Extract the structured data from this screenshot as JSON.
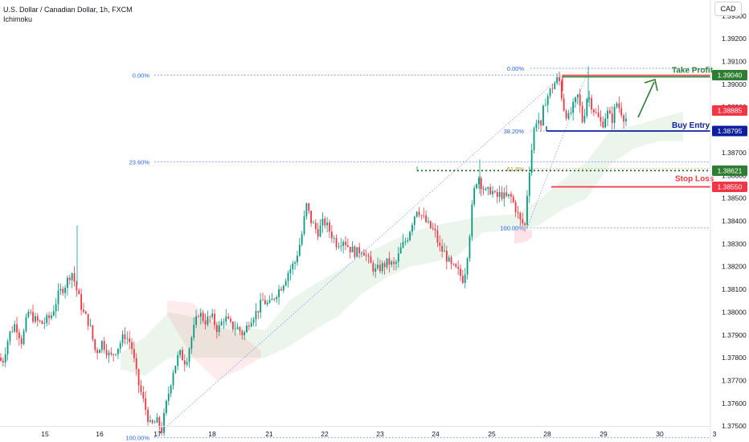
{
  "header": {
    "symbol_title": "U.S. Dollar / Canadian Dollar, 1h, FXCM",
    "indicator": "Ichimoku"
  },
  "currency_button": "CAD",
  "chart_data": {
    "type": "candlestick",
    "x_tick_labels": [
      "15",
      "16",
      "17",
      "18",
      "21",
      "22",
      "23",
      "24",
      "25",
      "28",
      "29",
      "30",
      "3"
    ],
    "y_ticks": [
      1.375,
      1.376,
      1.377,
      1.378,
      1.379,
      1.38,
      1.381,
      1.382,
      1.383,
      1.384,
      1.385,
      1.386,
      1.387,
      1.388,
      1.389,
      1.39,
      1.391,
      1.392,
      1.393
    ],
    "y_tick_labels": [
      "1.37500",
      "1.37600",
      "1.37700",
      "1.37800",
      "1.37900",
      "1.38000",
      "1.38100",
      "1.38200",
      "1.38300",
      "1.38400",
      "1.38500",
      "1.38600",
      "1.38700",
      "1.38800",
      "1.38900",
      "1.39000",
      "1.39100",
      "1.39200",
      "1.39300"
    ],
    "ylim": [
      1.3743,
      1.3937
    ],
    "price_labels": [
      {
        "value": 1.3904,
        "text": "1.39040",
        "color": "#2e7d32"
      },
      {
        "value": 1.38885,
        "text": "1.38885",
        "color": "#f23645"
      },
      {
        "value": 1.38795,
        "text": "1.38795",
        "color": "#0d1f9e"
      },
      {
        "value": 1.38621,
        "text": "1.38621",
        "color": "#2e7d32"
      },
      {
        "value": 1.3855,
        "text": "1.38550",
        "color": "#f23645"
      }
    ],
    "levels": [
      {
        "name": "Take Profit",
        "value": 1.3904,
        "color": "#2e7d32"
      },
      {
        "name": "Buy Entry",
        "value": 1.38795,
        "color": "#0d1f9e"
      },
      {
        "name": "Stop Loss",
        "value": 1.3855,
        "color": "#f23645"
      }
    ],
    "fib_large": {
      "levels": [
        {
          "label": "0.00%",
          "value": 1.3904
        },
        {
          "label": "23.60%",
          "value": 1.3866
        },
        {
          "label": "100.00%",
          "value": 1.3745
        }
      ]
    },
    "fib_small": {
      "levels": [
        {
          "label": "0.00%",
          "value": 1.3907
        },
        {
          "label": "38.20%",
          "value": 1.38795
        },
        {
          "label": "61.8%",
          "value": 1.3863
        },
        {
          "label": "100.00%",
          "value": 1.3837
        }
      ]
    },
    "price_path": [
      [
        0,
        1.378
      ],
      [
        6,
        1.3778
      ],
      [
        14,
        1.379
      ],
      [
        22,
        1.3795
      ],
      [
        30,
        1.3787
      ],
      [
        38,
        1.38
      ],
      [
        48,
        1.3796
      ],
      [
        56,
        1.3795
      ],
      [
        66,
        1.3798
      ],
      [
        76,
        1.3808
      ],
      [
        84,
        1.3812
      ],
      [
        92,
        1.3818
      ],
      [
        98,
        1.381
      ],
      [
        106,
        1.38
      ],
      [
        114,
        1.3795
      ],
      [
        122,
        1.3782
      ],
      [
        130,
        1.3787
      ],
      [
        140,
        1.378
      ],
      [
        150,
        1.3785
      ],
      [
        158,
        1.379
      ],
      [
        166,
        1.3786
      ],
      [
        174,
        1.377
      ],
      [
        182,
        1.376
      ],
      [
        190,
        1.375
      ],
      [
        198,
        1.3752
      ],
      [
        204,
        1.3748
      ],
      [
        210,
        1.376
      ],
      [
        218,
        1.3774
      ],
      [
        226,
        1.3782
      ],
      [
        234,
        1.3778
      ],
      [
        242,
        1.379
      ],
      [
        250,
        1.38
      ],
      [
        258,
        1.3796
      ],
      [
        266,
        1.3798
      ],
      [
        274,
        1.3792
      ],
      [
        282,
        1.3798
      ],
      [
        290,
        1.3794
      ],
      [
        298,
        1.3793
      ],
      [
        306,
        1.379
      ],
      [
        314,
        1.3797
      ],
      [
        322,
        1.38
      ],
      [
        330,
        1.3805
      ],
      [
        338,
        1.3803
      ],
      [
        346,
        1.3808
      ],
      [
        354,
        1.3812
      ],
      [
        362,
        1.3818
      ],
      [
        370,
        1.3822
      ],
      [
        378,
        1.3833
      ],
      [
        384,
        1.3847
      ],
      [
        390,
        1.384
      ],
      [
        398,
        1.3835
      ],
      [
        406,
        1.384
      ],
      [
        414,
        1.3835
      ],
      [
        422,
        1.383
      ],
      [
        430,
        1.3832
      ],
      [
        438,
        1.3828
      ],
      [
        446,
        1.3826
      ],
      [
        454,
        1.3828
      ],
      [
        462,
        1.3822
      ],
      [
        470,
        1.3818
      ],
      [
        478,
        1.382
      ],
      [
        486,
        1.3822
      ],
      [
        494,
        1.382
      ],
      [
        502,
        1.3828
      ],
      [
        510,
        1.3833
      ],
      [
        516,
        1.384
      ],
      [
        522,
        1.3846
      ],
      [
        528,
        1.3842
      ],
      [
        536,
        1.3838
      ],
      [
        544,
        1.3835
      ],
      [
        550,
        1.3828
      ],
      [
        556,
        1.3826
      ],
      [
        564,
        1.382
      ],
      [
        572,
        1.3818
      ],
      [
        580,
        1.3814
      ],
      [
        586,
        1.383
      ],
      [
        590,
        1.3845
      ],
      [
        594,
        1.3856
      ],
      [
        598,
        1.386
      ],
      [
        602,
        1.3856
      ],
      [
        608,
        1.3852
      ],
      [
        614,
        1.3854
      ],
      [
        620,
        1.385
      ],
      [
        626,
        1.3852
      ],
      [
        632,
        1.385
      ],
      [
        638,
        1.3851
      ],
      [
        644,
        1.3846
      ],
      [
        650,
        1.384
      ],
      [
        656,
        1.3838
      ],
      [
        660,
        1.3858
      ],
      [
        664,
        1.387
      ],
      [
        668,
        1.3882
      ],
      [
        672,
        1.3886
      ],
      [
        676,
        1.388
      ],
      [
        680,
        1.3892
      ],
      [
        686,
        1.3896
      ],
      [
        692,
        1.39
      ],
      [
        698,
        1.3903
      ],
      [
        704,
        1.389
      ],
      [
        710,
        1.3885
      ],
      [
        716,
        1.389
      ],
      [
        722,
        1.3895
      ],
      [
        728,
        1.3883
      ],
      [
        734,
        1.3896
      ],
      [
        740,
        1.389
      ],
      [
        746,
        1.3886
      ],
      [
        752,
        1.3882
      ],
      [
        758,
        1.3888
      ],
      [
        764,
        1.3884
      ],
      [
        770,
        1.3892
      ],
      [
        776,
        1.3888
      ],
      [
        780,
        1.3885
      ]
    ],
    "cloud_green": [
      [
        150,
        1.3775,
        1.3782
      ],
      [
        180,
        1.3772,
        1.3789
      ],
      [
        210,
        1.378,
        1.38
      ],
      [
        330,
        1.378,
        1.3792
      ],
      [
        360,
        1.3785,
        1.3805
      ],
      [
        390,
        1.3792,
        1.3812
      ],
      [
        420,
        1.3798,
        1.3818
      ],
      [
        450,
        1.3808,
        1.3825
      ],
      [
        480,
        1.3815,
        1.383
      ],
      [
        510,
        1.382,
        1.3835
      ],
      [
        540,
        1.3822,
        1.3838
      ],
      [
        570,
        1.3825,
        1.384
      ],
      [
        600,
        1.3835,
        1.3842
      ],
      [
        640,
        1.3836,
        1.3843
      ],
      [
        670,
        1.3838,
        1.3849
      ],
      [
        700,
        1.3845,
        1.3858
      ],
      [
        730,
        1.385,
        1.3866
      ],
      [
        760,
        1.3865,
        1.388
      ],
      [
        790,
        1.3872,
        1.3882
      ],
      [
        820,
        1.3875,
        1.3885
      ],
      [
        850,
        1.3875,
        1.3888
      ]
    ],
    "cloud_red": [
      [
        208,
        1.3799,
        1.3805
      ],
      [
        240,
        1.378,
        1.3804
      ],
      [
        270,
        1.377,
        1.3794
      ],
      [
        300,
        1.3775,
        1.379
      ],
      [
        325,
        1.378,
        1.3783
      ],
      [
        640,
        1.383,
        1.3836
      ],
      [
        655,
        1.3831,
        1.3836
      ],
      [
        662,
        1.3833,
        1.3836
      ]
    ]
  }
}
